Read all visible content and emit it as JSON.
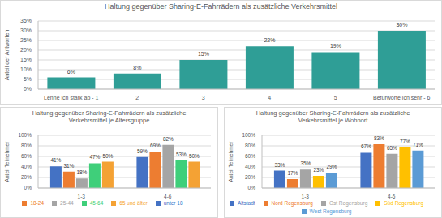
{
  "chart_data": [
    {
      "type": "bar",
      "title": "Haltung gegenüber Sharing-E-Fahrrädern als zusätzliche Verkehrsmittel",
      "ylabel": "Anteil der Antworten",
      "categories": [
        "Lehne ich stark ab - 1",
        "2",
        "3",
        "4",
        "5",
        "Befürworte ich sehr - 6"
      ],
      "values": [
        6,
        8,
        15,
        22,
        19,
        30
      ],
      "value_labels": [
        "6%",
        "8%",
        "15%",
        "22%",
        "19%",
        "30%"
      ],
      "color": "#2f9e96",
      "ylim": [
        0,
        35
      ],
      "yticks": [
        {
          "value": 0,
          "label": "0%"
        },
        {
          "value": 5,
          "label": "5%"
        },
        {
          "value": 10,
          "label": "10%"
        },
        {
          "value": 15,
          "label": "15%"
        },
        {
          "value": 20,
          "label": "20%"
        },
        {
          "value": 25,
          "label": "25%"
        },
        {
          "value": 30,
          "label": "30%"
        },
        {
          "value": 35,
          "label": "35%"
        }
      ],
      "grid": true,
      "data_labels": true
    },
    {
      "type": "bar",
      "title": "Haltung gegenüber Sharing-E-Fahrrädern als zusätzliche Verkehrsmittel je Altersgruppe",
      "ylabel": "Anteil Teilnehmer",
      "categories": [
        "1-3",
        "4-6"
      ],
      "series": [
        {
          "name": "unter 18",
          "color": "#4472c4",
          "values": [
            41,
            59
          ],
          "value_labels": [
            "41%",
            "59%"
          ]
        },
        {
          "name": "18-24",
          "color": "#ed7d31",
          "values": [
            31,
            69
          ],
          "value_labels": [
            "31%",
            "69%"
          ]
        },
        {
          "name": "25-44",
          "color": "#a5a5a5",
          "values": [
            18,
            82
          ],
          "value_labels": [
            "18%",
            "82%"
          ]
        },
        {
          "name": "45-64",
          "color": "#3fcf7a",
          "values": [
            47,
            53
          ],
          "value_labels": [
            "47%",
            "53%"
          ]
        },
        {
          "name": "65 und älter",
          "color": "#f4a234",
          "values": [
            50,
            50
          ],
          "value_labels": [
            "50%",
            "50%"
          ]
        }
      ],
      "ylim": [
        0,
        100
      ],
      "yticks": [
        {
          "value": 0,
          "label": "0%"
        },
        {
          "value": 20,
          "label": "20%"
        },
        {
          "value": 40,
          "label": "40%"
        },
        {
          "value": 60,
          "label": "60%"
        },
        {
          "value": 80,
          "label": "80%"
        },
        {
          "value": 100,
          "label": "100%"
        }
      ],
      "grid": true,
      "data_labels": true,
      "legend": "bottom"
    },
    {
      "type": "bar",
      "title": "Haltung gegenüber Sharing-E-Fahrrädern als zusätzliche Verkehrsmittel je Wohnort",
      "ylabel": "Anteil Teilnehmer",
      "categories": [
        "1-3",
        "4-6"
      ],
      "series": [
        {
          "name": "Altstadt",
          "color": "#4472c4",
          "values": [
            33,
            67
          ],
          "value_labels": [
            "33%",
            "67%"
          ]
        },
        {
          "name": "Nord Regensburg",
          "color": "#ed7d31",
          "values": [
            17,
            83
          ],
          "value_labels": [
            "17%",
            "83%"
          ]
        },
        {
          "name": "Ost Regensburg",
          "color": "#a5a5a5",
          "values": [
            35,
            65
          ],
          "value_labels": [
            "35%",
            "65%"
          ]
        },
        {
          "name": "Süd Regensburg",
          "color": "#ffc000",
          "values": [
            23,
            77
          ],
          "value_labels": [
            "23%",
            "77%"
          ]
        },
        {
          "name": "West Regensburg",
          "color": "#5b9bd5",
          "values": [
            29,
            71
          ],
          "value_labels": [
            "29%",
            "71%"
          ]
        }
      ],
      "ylim": [
        0,
        100
      ],
      "yticks": [
        {
          "value": 0,
          "label": "0%"
        },
        {
          "value": 20,
          "label": "20%"
        },
        {
          "value": 40,
          "label": "40%"
        },
        {
          "value": 60,
          "label": "60%"
        },
        {
          "value": 80,
          "label": "80%"
        },
        {
          "value": 100,
          "label": "100%"
        }
      ],
      "grid": true,
      "data_labels": true,
      "legend": "bottom"
    }
  ]
}
